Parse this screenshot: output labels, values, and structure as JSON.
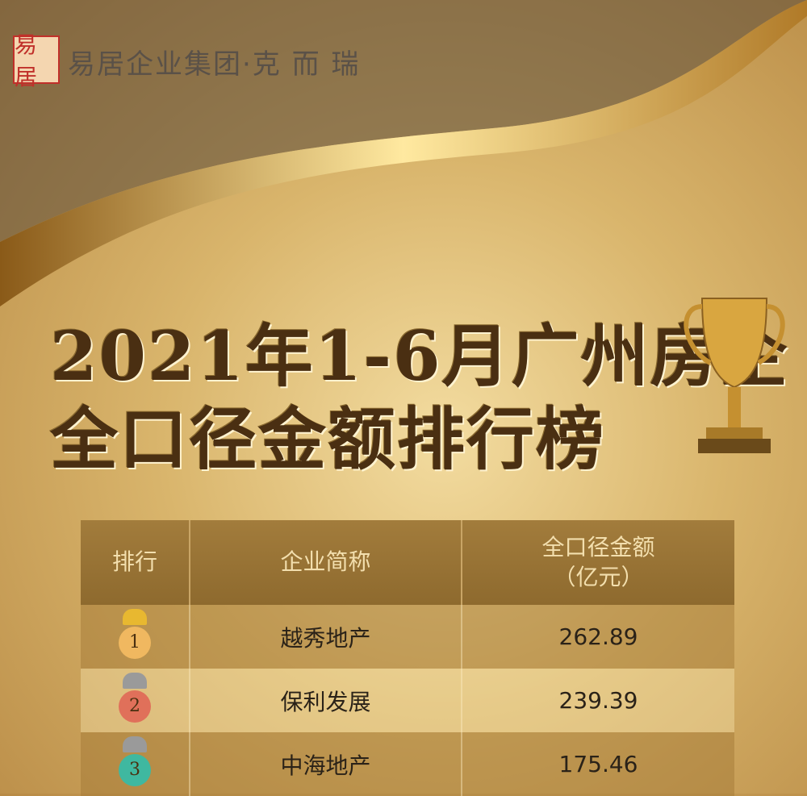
{
  "brand": {
    "logo_text": "易居",
    "name": "易居企业集团·克 而 瑞"
  },
  "title": {
    "line1": "2021年1-6月广州房企",
    "line2": "全口径金额排行榜"
  },
  "table": {
    "headers": [
      "排行",
      "企业简称",
      "全口径金额",
      "（亿元）"
    ],
    "rows": [
      {
        "rank": "1",
        "company": "越秀地产",
        "amount": "262.89",
        "medal_color": "#f0b860",
        "crown_color": "#e8b830"
      },
      {
        "rank": "2",
        "company": "保利发展",
        "amount": "239.39",
        "medal_color": "#e0705a",
        "crown_color": "#9a9a9a"
      },
      {
        "rank": "3",
        "company": "中海地产",
        "amount": "175.46",
        "medal_color": "#3fb8a0",
        "crown_color": "#9a9a9a"
      }
    ]
  }
}
